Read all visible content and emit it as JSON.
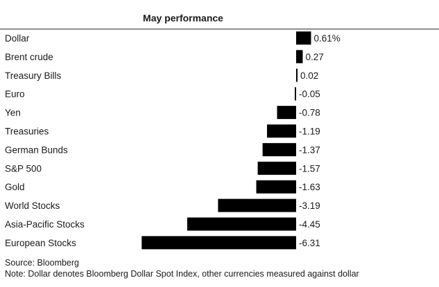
{
  "chart_data": {
    "type": "bar",
    "orientation": "horizontal",
    "title": "May performance",
    "categories": [
      "Dollar",
      "Brent crude",
      "Treasury Bills",
      "Euro",
      "Yen",
      "Treasuries",
      "German Bunds",
      "S&P 500",
      "Gold",
      "World Stocks",
      "Asia-Pacific Stocks",
      "European Stocks"
    ],
    "values": [
      0.61,
      0.27,
      0.02,
      -0.05,
      -0.78,
      -1.19,
      -1.37,
      -1.57,
      -1.63,
      -3.19,
      -4.45,
      -6.31
    ],
    "value_labels": [
      "0.61%",
      "0.27",
      "0.02",
      "-0.05",
      "-0.78",
      "-1.19",
      "-1.37",
      "-1.57",
      "-1.63",
      "-3.19",
      "-4.45",
      "-6.31"
    ],
    "bar_color": "#000000",
    "grid": false,
    "legend": "none",
    "source": "Source: Bloomberg",
    "note": "Note: Dollar denotes Bloomberg Dollar Spot Index, other currencies measured against dollar"
  }
}
